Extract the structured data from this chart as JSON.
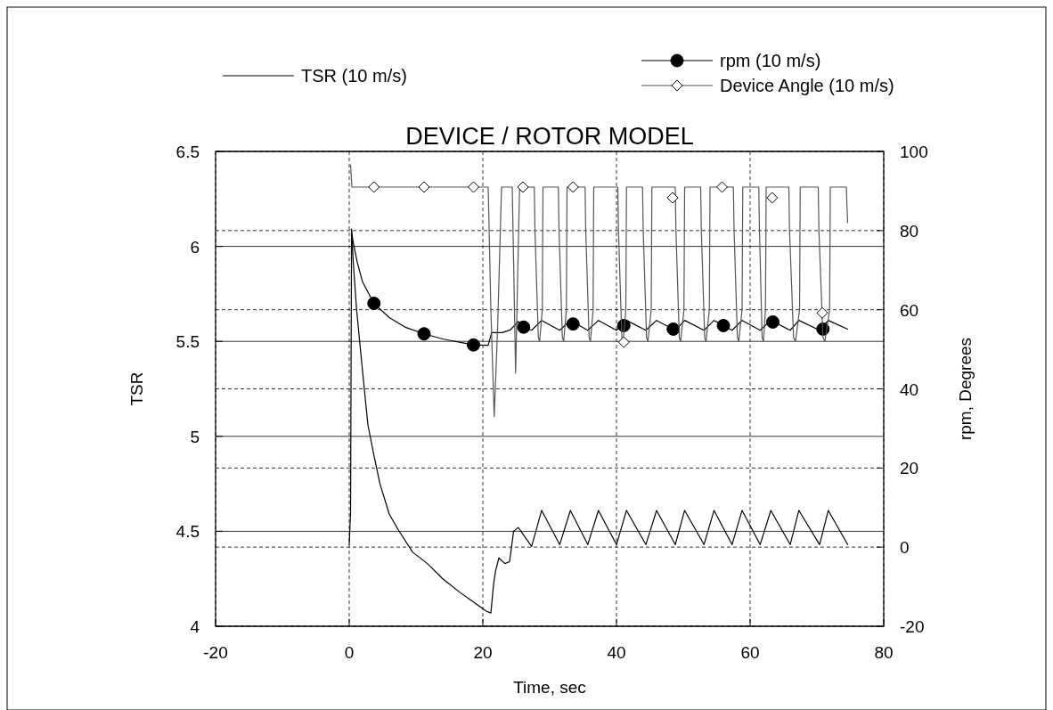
{
  "chart_data": {
    "type": "line",
    "title": "DEVICE / ROTOR MODEL",
    "xlabel": "Time, sec",
    "ylabel": "TSR",
    "y2label": "rpm, Degrees",
    "xlim": [
      -20,
      80
    ],
    "xticks": [
      -20,
      0,
      20,
      40,
      60,
      80
    ],
    "ylim": [
      4,
      6.5
    ],
    "yticks": [
      4,
      4.5,
      5,
      5.5,
      6,
      6.5
    ],
    "y2lim": [
      -20,
      100
    ],
    "y2ticks": [
      -20,
      0,
      20,
      40,
      60,
      80,
      100
    ],
    "grid": true,
    "legend": "top",
    "series": [
      {
        "name": "TSR (10 m/s)",
        "color": "#000000",
        "x": [
          0,
          0.2,
          0.35,
          0.6,
          1.1,
          1.7,
          2.2,
          2.8,
          3.7,
          4.6,
          6,
          7.3,
          9.5,
          11.7,
          14,
          16.5,
          18.5,
          20.5,
          21.2,
          21.6,
          21.9,
          22.4,
          23.3,
          24,
          24.6,
          25.3,
          27.3,
          28.8,
          31.5,
          33.1,
          35.7,
          37.3,
          40,
          41.5,
          44.4,
          46,
          48.8,
          50.2,
          53.1,
          54.6,
          57.3,
          58.8,
          61.5,
          63.1,
          66,
          67.3,
          70.4,
          71.7,
          74.6
        ],
        "values": [
          4.43,
          4.6,
          6.09,
          5.92,
          5.67,
          5.45,
          5.27,
          5.06,
          4.9,
          4.75,
          4.59,
          4.51,
          4.39,
          4.33,
          4.25,
          4.18,
          4.13,
          4.08,
          4.07,
          4.22,
          4.29,
          4.36,
          4.33,
          4.34,
          4.5,
          4.52,
          4.42,
          4.61,
          4.43,
          4.61,
          4.43,
          4.61,
          4.43,
          4.61,
          4.43,
          4.61,
          4.43,
          4.61,
          4.43,
          4.61,
          4.43,
          4.61,
          4.43,
          4.61,
          4.43,
          4.61,
          4.43,
          4.61,
          4.43
        ]
      },
      {
        "name": "rpm (10 m/s)",
        "color": "#000000",
        "axis": "y2",
        "x": [
          0.3,
          0.6,
          1.2,
          2,
          3.7,
          6,
          8.5,
          11.2,
          14,
          16.5,
          18.6,
          20.8,
          21.3,
          22.9,
          24.1,
          25.3,
          26.1,
          27.3,
          28.8,
          31.5,
          33.1,
          35.7,
          37.3,
          40,
          41.5,
          44.4,
          46,
          48.8,
          50.2,
          53.1,
          54.6,
          57.3,
          58.8,
          61.5,
          63.1,
          66,
          67.3,
          70.4,
          71.7,
          74.6
        ],
        "values": [
          80.4,
          77,
          72,
          67,
          61.6,
          58,
          55.5,
          53.9,
          52.6,
          51.8,
          51.1,
          51,
          54.2,
          54.2,
          54.9,
          57,
          55.6,
          54.8,
          57.3,
          54.8,
          57.3,
          54.8,
          57.3,
          54.8,
          57.3,
          54.8,
          57.3,
          54.8,
          57.3,
          54.8,
          57.3,
          54.8,
          57.3,
          54.8,
          57.3,
          54.8,
          57.3,
          54.8,
          57.3,
          55.1
        ]
      },
      {
        "type": "scatter",
        "color": "#000000",
        "axis": "y2",
        "marker": "circle",
        "x": [
          3.7,
          11.2,
          18.6,
          26.1,
          33.5,
          41.1,
          48.5,
          56,
          63.4,
          70.9
        ],
        "values": [
          61.6,
          53.9,
          51.1,
          55.6,
          56.4,
          56,
          55.1,
          56,
          56.9,
          55.1
        ]
      },
      {
        "name": "Device Angle (10 m/s)",
        "color": "#555555",
        "axis": "y2",
        "x": [
          0.2,
          0.4,
          20.8,
          21.2,
          21.7,
          22.2,
          22.8,
          24.4,
          24.9,
          25.5,
          27.7,
          27.8,
          28.3,
          28.5,
          28.9,
          29,
          31.3,
          31.4,
          31.9,
          32.1,
          32.5,
          32.6,
          35.3,
          35.4,
          35.9,
          36.1,
          36.5,
          36.6,
          40.2,
          40.3,
          40.8,
          41,
          41.4,
          41.5,
          43.9,
          44,
          44.5,
          44.7,
          45.2,
          45.3,
          48.8,
          48.9,
          49.4,
          49.6,
          50.1,
          50.2,
          52.6,
          52.7,
          53.2,
          53.4,
          53.9,
          54,
          57.5,
          57.6,
          58.1,
          58.3,
          58.8,
          58.9,
          61.3,
          61.4,
          61.8,
          62,
          62.3,
          62.4,
          65.8,
          65.9,
          66.5,
          66.8,
          67.4,
          67.5,
          70.2,
          70.3,
          70.9,
          71.2,
          71.9,
          72,
          74.4,
          74.5,
          74.6
        ],
        "values": [
          96.6,
          91,
          91,
          60,
          33,
          55,
          91,
          91,
          44,
          91,
          91,
          80,
          53,
          52,
          60,
          91,
          91,
          80,
          53,
          52,
          60,
          91,
          91,
          80,
          53,
          52,
          60,
          91,
          91,
          80,
          53,
          52,
          60,
          91,
          91,
          80,
          53,
          52,
          60,
          91,
          91,
          80,
          53,
          52,
          60,
          91,
          91,
          80,
          53,
          52,
          60,
          91,
          91,
          80,
          53,
          52,
          60,
          91,
          91,
          80,
          53,
          52,
          60,
          91,
          91,
          80,
          53,
          52,
          60,
          91,
          91,
          80,
          53,
          52,
          60,
          91,
          91,
          86,
          82
        ]
      },
      {
        "type": "scatter",
        "color": "#000000",
        "axis": "y2",
        "marker": "diamond",
        "x": [
          3.7,
          11.2,
          18.6,
          26,
          33.5,
          41.1,
          48.4,
          55.8,
          63.3,
          70.8
        ],
        "values": [
          91,
          91,
          91,
          91,
          91,
          51.8,
          88.3,
          91,
          88.3,
          59.2
        ]
      }
    ]
  }
}
